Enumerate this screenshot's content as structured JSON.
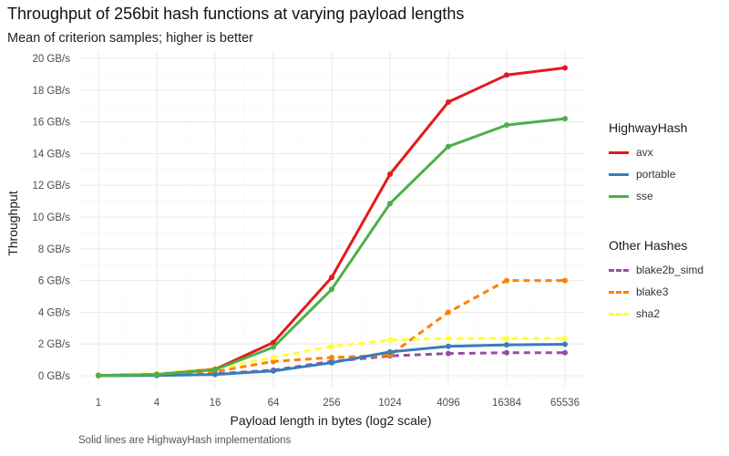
{
  "chart_data": {
    "type": "line",
    "title": "Throughput of 256bit hash functions at varying payload lengths",
    "subtitle": "Mean of criterion samples; higher is better",
    "xlabel": "Payload length in bytes (log2 scale)",
    "ylabel": "Throughput",
    "caption": "Solid lines are HighwayHash implementations",
    "x": [
      1,
      4,
      16,
      64,
      256,
      1024,
      4096,
      16384,
      65536
    ],
    "x_scale": "log2",
    "x_tick_labels": [
      "1",
      "4",
      "16",
      "64",
      "256",
      "1024",
      "4096",
      "16384",
      "65536"
    ],
    "ylim": [
      0,
      20
    ],
    "y_ticks": [
      0,
      2,
      4,
      6,
      8,
      10,
      12,
      14,
      16,
      18,
      20
    ],
    "y_tick_labels": [
      "0 GB/s",
      "2 GB/s",
      "4 GB/s",
      "6 GB/s",
      "8 GB/s",
      "10 GB/s",
      "12 GB/s",
      "14 GB/s",
      "16 GB/s",
      "18 GB/s",
      "20 GB/s"
    ],
    "grid": true,
    "legend_position": "right",
    "legend_groups": [
      {
        "title": "HighwayHash",
        "series": [
          {
            "name": "avx",
            "color": "#e41a1c",
            "dashed": false,
            "values": [
              0.02,
              0.08,
              0.4,
              2.1,
              6.2,
              12.7,
              17.25,
              18.95,
              19.4
            ]
          },
          {
            "name": "portable",
            "color": "#377eb8",
            "dashed": false,
            "values": [
              0.005,
              0.02,
              0.08,
              0.3,
              0.82,
              1.5,
              1.85,
              1.95,
              1.98
            ]
          },
          {
            "name": "sse",
            "color": "#4daf4a",
            "dashed": false,
            "values": [
              0.02,
              0.08,
              0.38,
              1.8,
              5.45,
              10.85,
              14.45,
              15.8,
              16.2
            ]
          }
        ]
      },
      {
        "title": "Other Hashes",
        "series": [
          {
            "name": "blake2b_simd",
            "color": "#984ea3",
            "dashed": true,
            "values": [
              0.01,
              0.04,
              0.12,
              0.35,
              0.9,
              1.25,
              1.4,
              1.45,
              1.45
            ]
          },
          {
            "name": "blake3",
            "color": "#ff7f00",
            "dashed": true,
            "values": [
              0.02,
              0.07,
              0.25,
              0.9,
              1.15,
              1.3,
              4.0,
              6.0,
              6.0
            ]
          },
          {
            "name": "sha2",
            "color": "#ffff33",
            "dashed": true,
            "values": [
              0.04,
              0.15,
              0.45,
              1.15,
              1.85,
              2.25,
              2.35,
              2.35,
              2.35
            ]
          }
        ]
      }
    ]
  }
}
